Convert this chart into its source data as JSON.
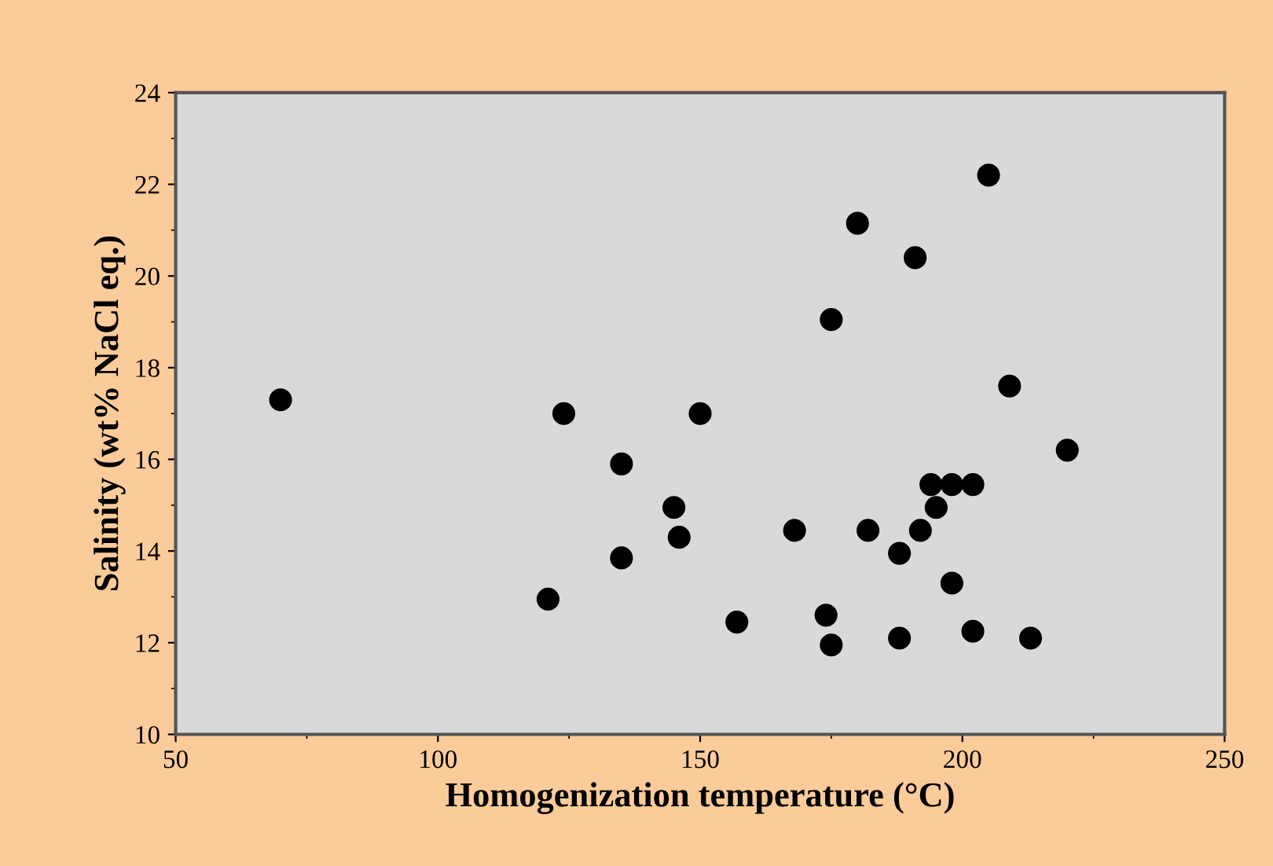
{
  "chart_data": {
    "type": "scatter",
    "xlabel": "Homogenization temperature (°C)",
    "ylabel": "Salinity (wt% NaCl eq.)",
    "x": [
      70,
      121,
      124,
      135,
      135,
      145,
      146,
      150,
      157,
      168,
      174,
      175,
      175,
      180,
      182,
      188,
      188,
      191,
      192,
      194,
      195,
      198,
      198,
      202,
      202,
      205,
      209,
      213,
      220
    ],
    "series": [
      {
        "color": "#000000",
        "values": [
          17.3,
          12.95,
          17.0,
          15.9,
          13.85,
          14.95,
          14.3,
          17.0,
          12.45,
          14.45,
          12.6,
          11.95,
          19.05,
          21.15,
          14.45,
          13.95,
          12.1,
          20.4,
          14.45,
          15.45,
          14.95,
          15.45,
          13.3,
          15.45,
          12.25,
          22.2,
          17.6,
          12.1,
          16.2
        ]
      }
    ],
    "xlim": [
      50,
      250
    ],
    "xticks": [
      50,
      100,
      150,
      200,
      250
    ],
    "ylim": [
      10,
      24
    ],
    "yticks": [
      10,
      12,
      14,
      16,
      18,
      20,
      22,
      24
    ],
    "marker": "circle",
    "grid": false,
    "legend": false
  }
}
